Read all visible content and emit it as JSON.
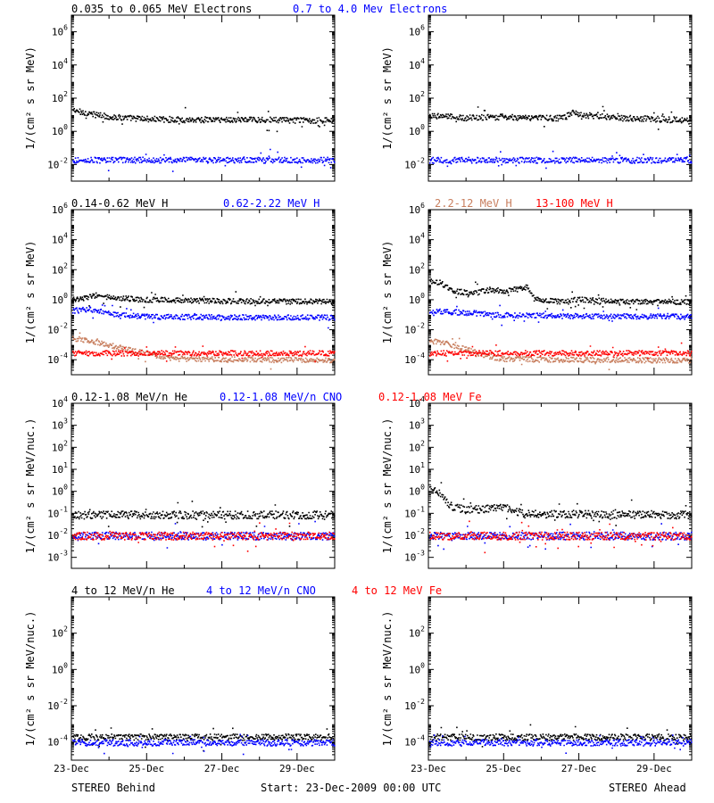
{
  "footer": {
    "left": "STEREO Behind",
    "center": "Start: 23-Dec-2009 00:00 UTC",
    "right": "STEREO Ahead"
  },
  "colors": {
    "black": "#000000",
    "blue": "#0000ff",
    "tan": "#c87f5f",
    "red": "#ff0000"
  },
  "x_ticks": [
    "23-Dec",
    "25-Dec",
    "27-Dec",
    "29-Dec"
  ],
  "rows": [
    {
      "ylabel": "1/(cm² s sr MeV)",
      "legend": [
        {
          "text": "0.035 to 0.065 MeV Electrons",
          "color": "black"
        },
        {
          "text": "0.7 to 4.0 Mev Electrons",
          "color": "blue"
        }
      ],
      "ylim_exp": [
        -3,
        7
      ],
      "tick_exps": [
        -2,
        0,
        2,
        4,
        6
      ]
    },
    {
      "ylabel": "1/(cm² s sr MeV)",
      "legend": [
        {
          "text": "0.14-0.62 MeV H",
          "color": "black"
        },
        {
          "text": "0.62-2.22 MeV H",
          "color": "blue"
        },
        {
          "text": "2.2-12 MeV H",
          "color": "tan"
        },
        {
          "text": "13-100 MeV H",
          "color": "red"
        }
      ],
      "ylim_exp": [
        -5,
        6
      ],
      "tick_exps": [
        -4,
        -2,
        0,
        2,
        4,
        6
      ]
    },
    {
      "ylabel": "1/(cm² s sr MeV/nuc.)",
      "legend": [
        {
          "text": "0.12-1.08 MeV/n He",
          "color": "black"
        },
        {
          "text": "0.12-1.08 MeV/n CNO",
          "color": "blue"
        },
        {
          "text": "0.12-1.08 MeV Fe",
          "color": "red"
        }
      ],
      "ylim_exp": [
        -3.5,
        4
      ],
      "tick_exps": [
        -3,
        -2,
        -1,
        0,
        1,
        2,
        3,
        4
      ]
    },
    {
      "ylabel": "1/(cm² s sr MeV/nuc.)",
      "legend": [
        {
          "text": "4 to 12 MeV/n He",
          "color": "black"
        },
        {
          "text": "4 to 12 MeV/n CNO",
          "color": "blue"
        },
        {
          "text": "4 to 12 MeV Fe",
          "color": "red"
        }
      ],
      "ylim_exp": [
        -5,
        4
      ],
      "tick_exps": [
        -4,
        -2,
        0,
        2
      ]
    }
  ],
  "chart_data": {
    "type": "scatter",
    "xscale": "time",
    "yscale": "log",
    "x_range": [
      "23-Dec-2009 00:00",
      "30-Dec-2009 00:00"
    ],
    "x_ticks": [
      "23-Dec",
      "25-Dec",
      "27-Dec",
      "29-Dec"
    ],
    "panels": [
      {
        "row": 0,
        "spacecraft": "STEREO Behind",
        "ylim": [
          0.001,
          10000000
        ],
        "series": [
          {
            "name": "0.035 to 0.065 MeV Electrons",
            "color": "black",
            "points": [
              [
                0,
                20
              ],
              [
                0.5,
                12
              ],
              [
                1,
                8
              ],
              [
                2,
                6
              ],
              [
                3,
                5.5
              ],
              [
                4,
                5.5
              ],
              [
                5,
                5.5
              ],
              [
                6,
                5
              ],
              [
                7,
                5
              ]
            ]
          },
          {
            "name": "0.7 to 4.0 Mev Electrons",
            "color": "blue",
            "points": [
              [
                0,
                0.02
              ],
              [
                7,
                0.02
              ]
            ]
          }
        ]
      },
      {
        "row": 0,
        "spacecraft": "STEREO Ahead",
        "ylim": [
          0.001,
          10000000
        ],
        "series": [
          {
            "name": "0.035 to 0.065 MeV Electrons",
            "color": "black",
            "points": [
              [
                0,
                10
              ],
              [
                1,
                7
              ],
              [
                2,
                8
              ],
              [
                3,
                7
              ],
              [
                3.6,
                7
              ],
              [
                3.8,
                15
              ],
              [
                4.2,
                10
              ],
              [
                5,
                7
              ],
              [
                6,
                6
              ],
              [
                7,
                5
              ]
            ]
          },
          {
            "name": "0.7 to 4.0 Mev Electrons",
            "color": "blue",
            "points": [
              [
                0,
                0.02
              ],
              [
                7,
                0.02
              ]
            ]
          }
        ]
      },
      {
        "row": 1,
        "spacecraft": "STEREO Behind",
        "ylim": [
          1e-05,
          1000000
        ],
        "series": [
          {
            "name": "0.14-0.62 MeV H",
            "color": "black",
            "points": [
              [
                0,
                1.2
              ],
              [
                0.4,
                1.5
              ],
              [
                0.6,
                2.2
              ],
              [
                1,
                1.5
              ],
              [
                2,
                1.1
              ],
              [
                4,
                0.9
              ],
              [
                7,
                0.8
              ]
            ]
          },
          {
            "name": "0.62-2.22 MeV H",
            "color": "blue",
            "points": [
              [
                0,
                0.2
              ],
              [
                0.5,
                0.25
              ],
              [
                1,
                0.12
              ],
              [
                2,
                0.08
              ],
              [
                7,
                0.07
              ]
            ]
          },
          {
            "name": "2.2-12 MeV H",
            "color": "tan",
            "points": [
              [
                0,
                0.003
              ],
              [
                0.5,
                0.0018
              ],
              [
                1,
                0.001
              ],
              [
                1.5,
                0.0005
              ],
              [
                2,
                0.0003
              ],
              [
                2.5,
                0.00015
              ],
              [
                3,
                0.00012
              ],
              [
                7,
                0.0001
              ]
            ]
          },
          {
            "name": "13-100 MeV H",
            "color": "red",
            "points": [
              [
                0,
                0.0003
              ],
              [
                7,
                0.0003
              ]
            ]
          }
        ]
      },
      {
        "row": 1,
        "spacecraft": "STEREO Ahead",
        "ylim": [
          1e-05,
          1000000
        ],
        "series": [
          {
            "name": "0.14-0.62 MeV H",
            "color": "black",
            "points": [
              [
                0,
                20
              ],
              [
                0.3,
                15
              ],
              [
                0.6,
                4
              ],
              [
                1.2,
                3
              ],
              [
                1.6,
                5
              ],
              [
                2,
                4
              ],
              [
                2.4,
                6
              ],
              [
                2.6,
                8
              ],
              [
                2.8,
                1.2
              ],
              [
                3.5,
                0.8
              ],
              [
                4,
                1.2
              ],
              [
                5,
                0.8
              ],
              [
                7,
                0.8
              ]
            ]
          },
          {
            "name": "0.62-2.22 MeV H",
            "color": "blue",
            "points": [
              [
                0,
                0.2
              ],
              [
                1,
                0.15
              ],
              [
                2,
                0.1
              ],
              [
                7,
                0.08
              ]
            ]
          },
          {
            "name": "2.2-12 MeV H",
            "color": "tan",
            "points": [
              [
                0,
                0.002
              ],
              [
                0.5,
                0.0012
              ],
              [
                1,
                0.0005
              ],
              [
                1.5,
                0.0002
              ],
              [
                2,
                0.00012
              ],
              [
                7,
                0.0001
              ]
            ]
          },
          {
            "name": "13-100 MeV H",
            "color": "red",
            "points": [
              [
                0,
                0.0003
              ],
              [
                7,
                0.0003
              ]
            ]
          }
        ]
      },
      {
        "row": 2,
        "spacecraft": "STEREO Behind",
        "ylim": [
          0.0003,
          10000
        ],
        "series": [
          {
            "name": "0.12-1.08 MeV/n He",
            "color": "black",
            "points": [
              [
                0,
                0.09
              ],
              [
                7,
                0.09
              ]
            ]
          },
          {
            "name": "0.12-1.08 MeV/n CNO",
            "color": "blue",
            "points": [
              [
                0,
                0.01
              ],
              [
                7,
                0.01
              ]
            ]
          },
          {
            "name": "0.12-1.08 MeV Fe",
            "color": "red",
            "points": [
              [
                0,
                0.01
              ],
              [
                7,
                0.01
              ]
            ]
          }
        ]
      },
      {
        "row": 2,
        "spacecraft": "STEREO Ahead",
        "ylim": [
          0.0003,
          10000
        ],
        "series": [
          {
            "name": "0.12-1.08 MeV/n He",
            "color": "black",
            "points": [
              [
                0,
                1.5
              ],
              [
                0.3,
                0.8
              ],
              [
                0.6,
                0.2
              ],
              [
                1,
                0.15
              ],
              [
                2,
                0.2
              ],
              [
                2.5,
                0.1
              ],
              [
                7,
                0.09
              ]
            ]
          },
          {
            "name": "0.12-1.08 MeV/n CNO",
            "color": "blue",
            "points": [
              [
                0,
                0.01
              ],
              [
                7,
                0.01
              ]
            ]
          },
          {
            "name": "0.12-1.08 MeV Fe",
            "color": "red",
            "points": [
              [
                0,
                0.01
              ],
              [
                7,
                0.01
              ]
            ]
          }
        ]
      },
      {
        "row": 3,
        "spacecraft": "STEREO Behind",
        "ylim": [
          1e-05,
          10000
        ],
        "series": [
          {
            "name": "4 to 12 MeV/n He",
            "color": "black",
            "points": [
              [
                0,
                0.0002
              ],
              [
                7,
                0.0002
              ]
            ]
          },
          {
            "name": "4 to 12 MeV/n CNO",
            "color": "blue",
            "points": [
              [
                0,
                0.0001
              ],
              [
                7,
                0.0001
              ]
            ]
          }
        ]
      },
      {
        "row": 3,
        "spacecraft": "STEREO Ahead",
        "ylim": [
          1e-05,
          10000
        ],
        "series": [
          {
            "name": "4 to 12 MeV/n He",
            "color": "black",
            "points": [
              [
                0,
                0.0002
              ],
              [
                7,
                0.0002
              ]
            ]
          },
          {
            "name": "4 to 12 MeV/n CNO",
            "color": "blue",
            "points": [
              [
                0,
                0.0001
              ],
              [
                7,
                0.0001
              ]
            ]
          }
        ]
      }
    ]
  }
}
